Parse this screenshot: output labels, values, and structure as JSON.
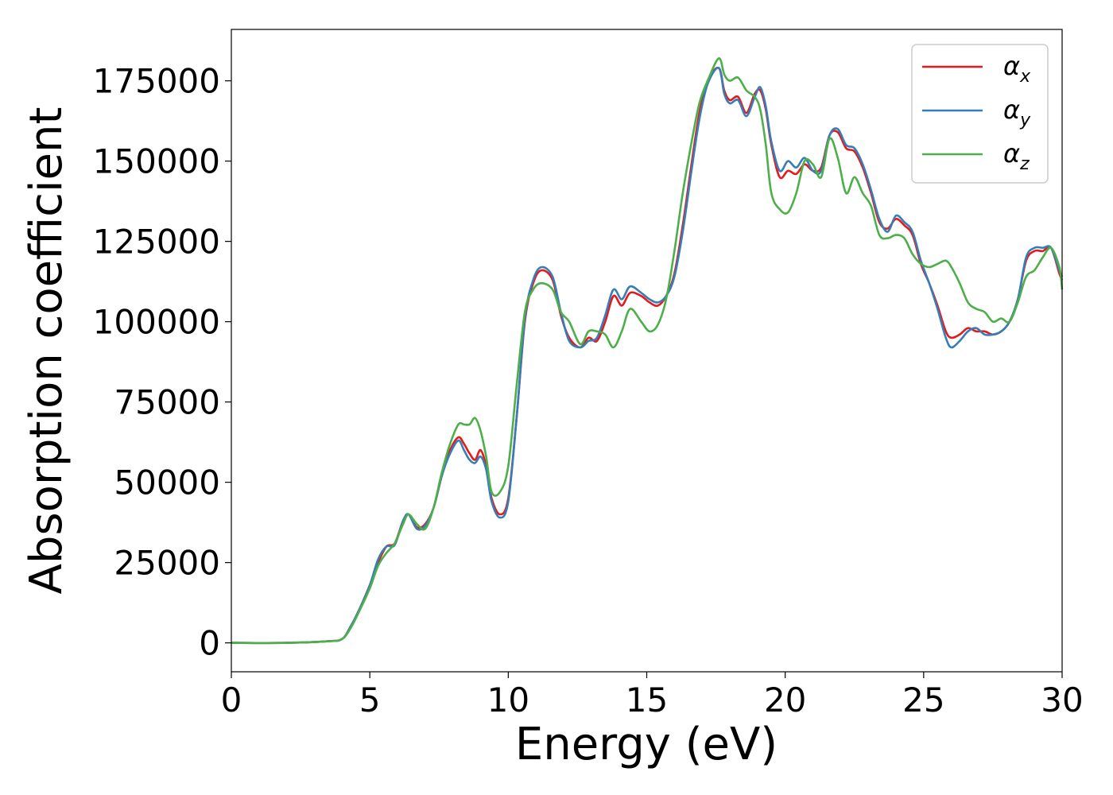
{
  "chart_data": {
    "type": "line",
    "title": "",
    "xlabel": "Energy (eV)",
    "ylabel": "Absorption coefficient",
    "xlim": [
      0,
      30
    ],
    "ylim": [
      -9000,
      191000
    ],
    "xticks": [
      0,
      5,
      10,
      15,
      20,
      25,
      30
    ],
    "yticks": [
      0,
      25000,
      50000,
      75000,
      100000,
      125000,
      150000,
      175000
    ],
    "legend_position": "top-right",
    "grid": false,
    "series": [
      {
        "name": "α_x",
        "label_base": "α",
        "label_sub": "x",
        "color": "#e41a1c",
        "x": [
          0,
          2,
          3.5,
          4,
          4.3,
          4.6,
          5,
          5.3,
          5.6,
          5.9,
          6.2,
          6.4,
          6.7,
          7.0,
          7.3,
          7.6,
          7.9,
          8.2,
          8.4,
          8.6,
          8.8,
          9.0,
          9.2,
          9.4,
          9.7,
          10.0,
          10.3,
          10.6,
          10.9,
          11.2,
          11.6,
          11.9,
          12.2,
          12.6,
          12.9,
          13.2,
          13.5,
          13.8,
          14.1,
          14.4,
          14.8,
          15.1,
          15.4,
          15.7,
          16.0,
          16.3,
          16.6,
          16.9,
          17.2,
          17.6,
          17.8,
          18.0,
          18.3,
          18.6,
          18.9,
          19.1,
          19.3,
          19.5,
          19.8,
          20.1,
          20.4,
          20.7,
          21.0,
          21.3,
          21.6,
          21.9,
          22.2,
          22.5,
          22.8,
          23.1,
          23.4,
          23.7,
          24.0,
          24.3,
          24.6,
          24.9,
          25.2,
          25.5,
          25.8,
          26.0,
          26.3,
          26.6,
          26.9,
          27.2,
          27.5,
          27.8,
          28.1,
          28.4,
          28.7,
          29.0,
          29.3,
          29.6,
          29.9,
          30.0
        ],
        "y": [
          0,
          0,
          500,
          1200,
          5000,
          10000,
          18000,
          25000,
          30000,
          31000,
          38000,
          40000,
          36000,
          37000,
          42000,
          52000,
          60000,
          64000,
          62000,
          59000,
          57000,
          60000,
          55000,
          45000,
          40000,
          45000,
          70000,
          100000,
          112000,
          116000,
          113000,
          102000,
          95000,
          92000,
          95000,
          94000,
          100000,
          108000,
          105000,
          109000,
          108000,
          106000,
          105000,
          108000,
          115000,
          130000,
          148000,
          165000,
          175000,
          179000,
          172000,
          169000,
          170000,
          165000,
          171000,
          172000,
          166000,
          155000,
          145000,
          147000,
          146000,
          149000,
          147000,
          148000,
          158000,
          159000,
          154000,
          153000,
          148000,
          140000,
          131000,
          129000,
          132000,
          130000,
          127000,
          118000,
          112000,
          105000,
          97000,
          95000,
          96000,
          98000,
          97000,
          97000,
          96000,
          97000,
          100000,
          107000,
          119000,
          122000,
          122000,
          123000,
          115000,
          113000
        ]
      },
      {
        "name": "α_y",
        "label_base": "α",
        "label_sub": "y",
        "color": "#377eb8",
        "x": [
          0,
          2,
          3.5,
          4,
          4.3,
          4.6,
          5,
          5.3,
          5.6,
          5.9,
          6.2,
          6.4,
          6.7,
          7.0,
          7.3,
          7.6,
          7.9,
          8.2,
          8.4,
          8.6,
          8.8,
          9.0,
          9.2,
          9.4,
          9.7,
          10.0,
          10.3,
          10.6,
          10.9,
          11.2,
          11.6,
          11.9,
          12.2,
          12.6,
          12.9,
          13.2,
          13.5,
          13.8,
          14.1,
          14.4,
          14.8,
          15.1,
          15.4,
          15.7,
          16.0,
          16.3,
          16.6,
          16.9,
          17.2,
          17.6,
          17.8,
          18.0,
          18.3,
          18.6,
          18.9,
          19.1,
          19.3,
          19.5,
          19.8,
          20.1,
          20.4,
          20.7,
          21.0,
          21.3,
          21.6,
          21.9,
          22.2,
          22.5,
          22.8,
          23.1,
          23.4,
          23.7,
          24.0,
          24.3,
          24.6,
          24.9,
          25.2,
          25.5,
          25.8,
          26.0,
          26.3,
          26.6,
          26.9,
          27.2,
          27.5,
          27.8,
          28.1,
          28.4,
          28.7,
          29.0,
          29.3,
          29.6,
          29.9,
          30.0
        ],
        "y": [
          0,
          0,
          500,
          1200,
          5000,
          10000,
          18000,
          26000,
          30000,
          30500,
          38000,
          40000,
          35500,
          36500,
          42000,
          52000,
          59000,
          63000,
          60000,
          57000,
          56000,
          58000,
          54000,
          44000,
          39000,
          44000,
          70000,
          101000,
          113000,
          117000,
          114000,
          103000,
          94000,
          92000,
          94000,
          95000,
          102000,
          110000,
          107000,
          111000,
          109000,
          107000,
          106000,
          108000,
          114000,
          128000,
          146000,
          163000,
          174000,
          179000,
          171000,
          168000,
          169000,
          164000,
          170000,
          173000,
          167000,
          156000,
          147000,
          150000,
          148000,
          151000,
          147000,
          147000,
          158000,
          160000,
          155000,
          154000,
          149000,
          141000,
          132000,
          128000,
          133000,
          131000,
          128000,
          119000,
          112000,
          104000,
          95000,
          92000,
          94000,
          97000,
          98000,
          96000,
          96000,
          97000,
          100000,
          107000,
          120000,
          123000,
          123000,
          123000,
          116000,
          114000
        ]
      },
      {
        "name": "α_z",
        "label_base": "α",
        "label_sub": "z",
        "color": "#4daf4a",
        "x": [
          0,
          2,
          3.5,
          4,
          4.3,
          4.6,
          5,
          5.3,
          5.6,
          5.9,
          6.2,
          6.4,
          6.7,
          7.0,
          7.3,
          7.6,
          7.9,
          8.2,
          8.4,
          8.6,
          8.8,
          9.0,
          9.2,
          9.4,
          9.7,
          10.0,
          10.3,
          10.6,
          10.9,
          11.2,
          11.6,
          11.9,
          12.2,
          12.6,
          12.9,
          13.2,
          13.5,
          13.8,
          14.1,
          14.4,
          14.8,
          15.1,
          15.4,
          15.7,
          16.0,
          16.3,
          16.6,
          16.9,
          17.2,
          17.6,
          17.8,
          18.0,
          18.3,
          18.6,
          18.9,
          19.1,
          19.3,
          19.5,
          19.8,
          20.1,
          20.4,
          20.7,
          21.0,
          21.3,
          21.6,
          21.9,
          22.2,
          22.5,
          22.8,
          23.1,
          23.4,
          23.7,
          24.0,
          24.3,
          24.6,
          24.9,
          25.2,
          25.5,
          25.8,
          26.0,
          26.3,
          26.6,
          26.9,
          27.2,
          27.5,
          27.8,
          28.1,
          28.4,
          28.7,
          29.0,
          29.3,
          29.6,
          29.9,
          30.0
        ],
        "y": [
          0,
          0,
          500,
          1200,
          4500,
          9500,
          17000,
          24000,
          28000,
          31000,
          37000,
          40000,
          37000,
          35500,
          42000,
          53000,
          62000,
          68000,
          68000,
          68000,
          70000,
          66000,
          58000,
          47000,
          47000,
          55000,
          80000,
          103000,
          110000,
          112000,
          110000,
          103000,
          100000,
          93000,
          97000,
          97000,
          96000,
          92000,
          97000,
          104000,
          100000,
          97000,
          99000,
          107000,
          122000,
          140000,
          155000,
          168000,
          175000,
          182000,
          177000,
          175000,
          176000,
          172000,
          170000,
          166000,
          155000,
          140000,
          135000,
          134000,
          140000,
          150000,
          149000,
          145000,
          157000,
          151000,
          140000,
          145000,
          140000,
          136000,
          127000,
          126000,
          127000,
          126000,
          121000,
          118000,
          117000,
          118000,
          119000,
          117000,
          112000,
          106000,
          104000,
          103000,
          100000,
          101000,
          100000,
          106000,
          114000,
          116000,
          120000,
          123000,
          117000,
          110000
        ]
      }
    ]
  }
}
